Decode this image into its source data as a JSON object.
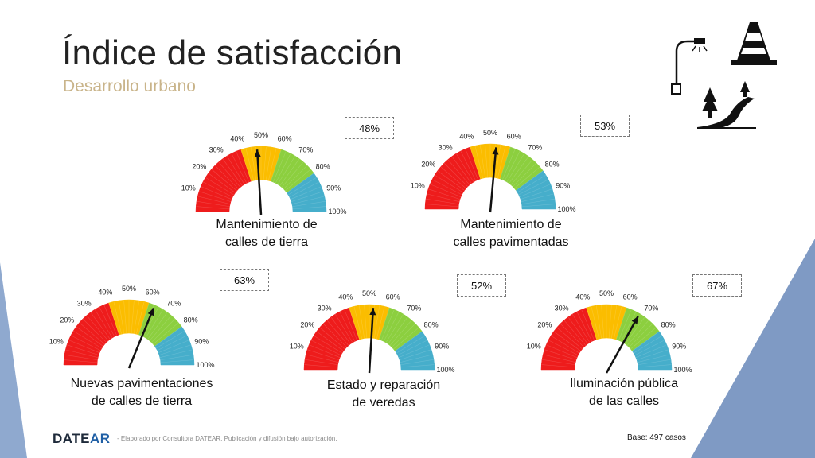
{
  "header": {
    "title": "Índice de satisfacción",
    "subtitle": "Desarrollo urbano"
  },
  "gauge_ticks": [
    "10%",
    "20%",
    "30%",
    "40%",
    "50%",
    "60%",
    "70%",
    "80%",
    "90%",
    "100%"
  ],
  "colors": {
    "red": "#ee1c1c",
    "yellow": "#fbbd00",
    "green": "#8ccf3f",
    "blue": "#46aecb",
    "needle": "#111111",
    "accent_blue": "#7f9ac4"
  },
  "chart_data": [
    {
      "type": "gauge",
      "value": 48,
      "value_label": "48%",
      "label_line1": "Mantenimiento de",
      "label_line2": "calles de tierra",
      "range": [
        0,
        100
      ]
    },
    {
      "type": "gauge",
      "value": 53,
      "value_label": "53%",
      "label_line1": "Mantenimiento de",
      "label_line2": "calles pavimentadas",
      "range": [
        0,
        100
      ]
    },
    {
      "type": "gauge",
      "value": 63,
      "value_label": "63%",
      "label_line1": "Nuevas pavimentaciones",
      "label_line2": "de calles de tierra",
      "range": [
        0,
        100
      ]
    },
    {
      "type": "gauge",
      "value": 52,
      "value_label": "52%",
      "label_line1": "Estado y reparación",
      "label_line2": "de veredas",
      "range": [
        0,
        100
      ]
    },
    {
      "type": "gauge",
      "value": 67,
      "value_label": "67%",
      "label_line1": "Iluminación pública",
      "label_line2": "de las calles",
      "range": [
        0,
        100
      ]
    }
  ],
  "footer": {
    "logo_main": "DATE",
    "logo_accent": "AR",
    "note": "- Elaborado por Consultora DATEAR. Publicación y difusión bajo autorización.",
    "base": "Base: 497 casos"
  },
  "icons": [
    "street-lamp-icon",
    "traffic-cone-icon",
    "road-trees-icon"
  ]
}
